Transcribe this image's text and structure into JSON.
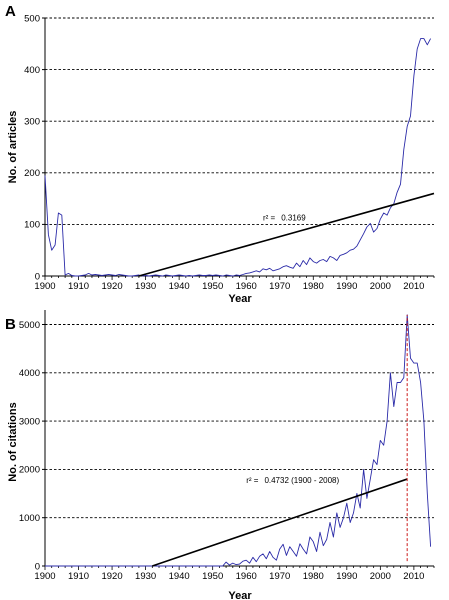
{
  "chart_data": [
    {
      "type": "line",
      "panel": "A",
      "xlabel": "Year",
      "ylabel": "No. of articles",
      "xlim": [
        1900,
        2016
      ],
      "ylim": [
        0,
        500
      ],
      "xticks": [
        1900,
        1910,
        1920,
        1930,
        1940,
        1950,
        1960,
        1970,
        1980,
        1990,
        2000,
        2010
      ],
      "yticks": [
        0,
        100,
        200,
        300,
        400,
        500
      ],
      "grid": "horizontal dashed",
      "colors": {
        "series": "#2b2ba8",
        "trend": "#000000",
        "grid": "#000000"
      },
      "series": [
        {
          "x": [
            1900,
            1901,
            1902,
            1903,
            1904,
            1905,
            1906,
            1907,
            1908,
            1909,
            1910,
            1911,
            1912,
            1913,
            1914,
            1915,
            1916,
            1917,
            1918,
            1919,
            1920,
            1921,
            1922,
            1923,
            1924,
            1925,
            1926,
            1927,
            1928,
            1929,
            1930,
            1931,
            1932,
            1933,
            1934,
            1935,
            1936,
            1937,
            1938,
            1939,
            1940,
            1941,
            1942,
            1943,
            1944,
            1945,
            1946,
            1947,
            1948,
            1949,
            1950,
            1951,
            1952,
            1953,
            1954,
            1955,
            1956,
            1957,
            1958,
            1959,
            1960,
            1961,
            1962,
            1963,
            1964,
            1965,
            1966,
            1967,
            1968,
            1969,
            1970,
            1971,
            1972,
            1973,
            1974,
            1975,
            1976,
            1977,
            1978,
            1979,
            1980,
            1981,
            1982,
            1983,
            1984,
            1985,
            1986,
            1987,
            1988,
            1989,
            1990,
            1991,
            1992,
            1993,
            1994,
            1995,
            1996,
            1997,
            1998,
            1999,
            2000,
            2001,
            2002,
            2003,
            2004,
            2005,
            2006,
            2007,
            2008,
            2009,
            2010,
            2011,
            2012,
            2013,
            2014,
            2015
          ],
          "values": [
            195,
            80,
            50,
            60,
            122,
            118,
            2,
            5,
            1,
            0,
            0,
            1,
            2,
            5,
            2,
            3,
            2,
            1,
            2,
            3,
            2,
            1,
            3,
            2,
            1,
            0,
            0,
            1,
            2,
            0,
            1,
            0,
            1,
            2,
            1,
            0,
            2,
            1,
            0,
            1,
            2,
            1,
            0,
            1,
            0,
            1,
            2,
            1,
            1,
            2,
            1,
            2,
            1,
            0,
            2,
            1,
            0,
            2,
            1,
            3,
            5,
            6,
            8,
            10,
            8,
            14,
            12,
            15,
            10,
            12,
            14,
            18,
            20,
            17,
            15,
            25,
            18,
            30,
            22,
            35,
            28,
            25,
            30,
            32,
            28,
            38,
            35,
            30,
            40,
            42,
            45,
            50,
            52,
            58,
            70,
            82,
            95,
            102,
            85,
            92,
            110,
            122,
            118,
            132,
            140,
            162,
            178,
            245,
            290,
            310,
            388,
            440,
            460,
            460,
            448,
            460
          ]
        }
      ],
      "trendline": {
        "x": [
          1928,
          2016
        ],
        "y": [
          0,
          160
        ]
      },
      "annotations": [
        {
          "label": "r² =",
          "value": "0.3169",
          "x": 1965,
          "y": 108
        }
      ]
    },
    {
      "type": "line",
      "panel": "B",
      "xlabel": "Year",
      "ylabel": "No. of citations",
      "xlim": [
        1900,
        2016
      ],
      "ylim": [
        0,
        5300
      ],
      "xticks": [
        1900,
        1910,
        1920,
        1930,
        1940,
        1950,
        1960,
        1970,
        1980,
        1990,
        2000,
        2010
      ],
      "yticks": [
        0,
        1000,
        2000,
        3000,
        4000,
        5000
      ],
      "grid": "horizontal dashed",
      "colors": {
        "series": "#2b2ba8",
        "trend": "#000000",
        "grid": "#000000",
        "marker": "#cc1a1a"
      },
      "series": [
        {
          "x": [
            1900,
            1905,
            1910,
            1915,
            1920,
            1925,
            1930,
            1932,
            1935,
            1940,
            1945,
            1950,
            1953,
            1954,
            1955,
            1956,
            1957,
            1958,
            1959,
            1960,
            1961,
            1962,
            1963,
            1964,
            1965,
            1966,
            1967,
            1968,
            1969,
            1970,
            1971,
            1972,
            1973,
            1974,
            1975,
            1976,
            1977,
            1978,
            1979,
            1980,
            1981,
            1982,
            1983,
            1984,
            1985,
            1986,
            1987,
            1988,
            1989,
            1990,
            1991,
            1992,
            1993,
            1994,
            1995,
            1996,
            1997,
            1998,
            1999,
            2000,
            2001,
            2002,
            2003,
            2004,
            2005,
            2006,
            2007,
            2008,
            2009,
            2010,
            2011,
            2012,
            2013,
            2014,
            2015
          ],
          "values": [
            0,
            0,
            0,
            0,
            0,
            0,
            0,
            0,
            0,
            0,
            0,
            0,
            0,
            80,
            20,
            60,
            30,
            40,
            100,
            120,
            60,
            180,
            90,
            200,
            250,
            150,
            300,
            180,
            120,
            350,
            450,
            220,
            400,
            300,
            200,
            460,
            350,
            250,
            600,
            500,
            300,
            700,
            420,
            550,
            900,
            600,
            1100,
            800,
            1000,
            1300,
            900,
            1100,
            1500,
            1200,
            2000,
            1400,
            1800,
            2200,
            2100,
            2600,
            2500,
            3000,
            4000,
            3300,
            3800,
            3800,
            3900,
            5200,
            4300,
            4200,
            4200,
            3800,
            3000,
            1500,
            400
          ]
        }
      ],
      "trendline": {
        "x": [
          1932,
          2008
        ],
        "y": [
          0,
          1800
        ]
      },
      "marker_line": {
        "x": 2008,
        "y": [
          100,
          5200
        ]
      },
      "annotations": [
        {
          "label": "r² =",
          "value": "0.4732 (1900 - 2008)",
          "x": 1960,
          "y": 1720
        }
      ]
    }
  ]
}
